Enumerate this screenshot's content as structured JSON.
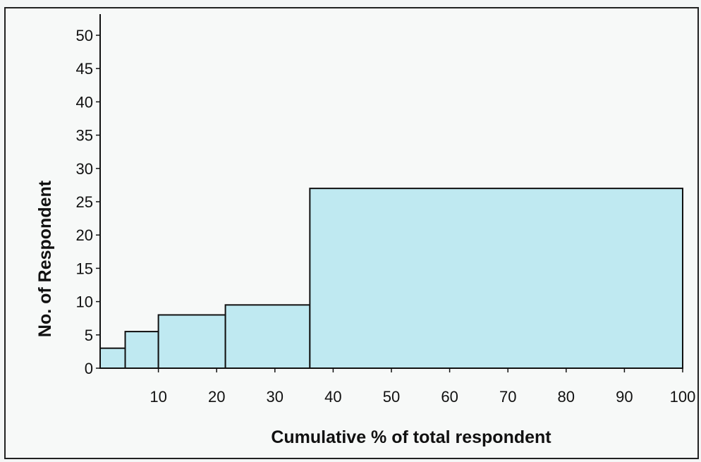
{
  "chart_data": {
    "type": "histogram",
    "title": "",
    "xlabel": "Cumulative % of total respondent",
    "ylabel": "No. of Respondent",
    "xlim": [
      0,
      100
    ],
    "ylim": [
      0,
      50
    ],
    "x_ticks": [
      10,
      20,
      30,
      40,
      50,
      60,
      70,
      80,
      90,
      100
    ],
    "x_tick_labels": [
      "10",
      "20",
      "30",
      "40",
      "50",
      "60",
      "70",
      "80",
      "90",
      "100"
    ],
    "y_ticks": [
      0,
      5,
      10,
      15,
      20,
      25,
      30,
      35,
      40,
      45,
      50
    ],
    "y_tick_labels": [
      "0",
      "5",
      "10",
      "15",
      "20",
      "25",
      "30",
      "35",
      "40",
      "45",
      "50"
    ],
    "bins": [
      {
        "x_start": 0,
        "x_end": 4.3,
        "value": 3
      },
      {
        "x_start": 4.3,
        "x_end": 10,
        "value": 5.5
      },
      {
        "x_start": 10,
        "x_end": 21.5,
        "value": 8
      },
      {
        "x_start": 21.5,
        "x_end": 36,
        "value": 9.5
      },
      {
        "x_start": 36,
        "x_end": 100,
        "value": 27
      }
    ],
    "grid": false,
    "legend": "none",
    "colors": {
      "bar_fill": "#bfe9f1",
      "bar_stroke": "#111111"
    }
  }
}
